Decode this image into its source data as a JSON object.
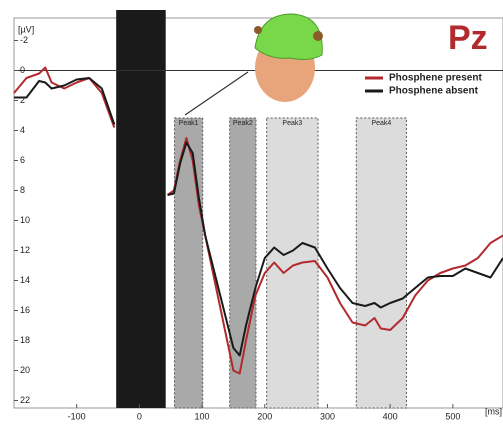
{
  "chart_data": {
    "type": "line",
    "title": "Pz",
    "y_label": "[µV]",
    "x_label": "[ms]",
    "y_inverted": true,
    "xlim": [
      -200,
      580
    ],
    "ylim": [
      -3.5,
      22.5
    ],
    "xticks": [
      -100,
      0,
      100,
      200,
      300,
      400,
      500
    ],
    "yticks": [
      -2,
      0,
      2,
      4,
      6,
      8,
      10,
      12,
      14,
      16,
      18,
      20,
      22
    ],
    "zero_line": true,
    "legend": "top-right",
    "blanked_range": [
      -37,
      42
    ],
    "regions": [
      {
        "label": "Peak1",
        "range": [
          56,
          101
        ],
        "color": "#a9a9a9"
      },
      {
        "label": "Peak2",
        "range": [
          144,
          186
        ],
        "color": "#a9a9a9"
      },
      {
        "label": "Peak3",
        "range": [
          203,
          285
        ],
        "color": "#dcdcdc"
      },
      {
        "label": "Peak4",
        "range": [
          346,
          426
        ],
        "color": "#dcdcdc"
      }
    ],
    "x": [
      -200,
      -180,
      -160,
      -150,
      -140,
      -120,
      -100,
      -80,
      -60,
      -40,
      0,
      45,
      55,
      65,
      75,
      85,
      95,
      105,
      120,
      135,
      150,
      160,
      170,
      185,
      200,
      215,
      230,
      245,
      260,
      280,
      300,
      320,
      340,
      360,
      375,
      385,
      400,
      420,
      440,
      460,
      480,
      500,
      520,
      540,
      560,
      580
    ],
    "series": [
      {
        "name": "Phosphene present",
        "color": "#b22a2e",
        "values": [
          1.5,
          0.5,
          0.2,
          -0.2,
          0.8,
          1.2,
          0.8,
          0.5,
          1.5,
          3.8,
          null,
          8.3,
          8,
          6,
          4.5,
          6,
          9,
          11,
          14,
          17,
          20,
          20.2,
          18,
          15,
          13.5,
          12.8,
          13.5,
          13,
          12.8,
          12.7,
          13.8,
          15.5,
          16.8,
          17,
          16.5,
          17.2,
          17.3,
          16.5,
          15,
          14,
          13.5,
          13.2,
          13,
          12.5,
          11.5,
          11
        ]
      },
      {
        "name": "Phosphene absent",
        "color": "#1a1a1a",
        "values": [
          1.8,
          1.8,
          0.7,
          0.8,
          1.2,
          1.0,
          0.6,
          0.5,
          1.2,
          3.6,
          null,
          8.3,
          8.2,
          6.2,
          4.8,
          5.5,
          8.5,
          11,
          13.5,
          16,
          18.5,
          19,
          17,
          14.5,
          12.5,
          11.8,
          12.3,
          12,
          11.5,
          11.8,
          13.2,
          14.5,
          15.5,
          15.7,
          15.5,
          15.8,
          15.5,
          15.2,
          14.5,
          13.8,
          13.7,
          13.7,
          13.2,
          13.5,
          13.8,
          12.5
        ]
      }
    ]
  }
}
